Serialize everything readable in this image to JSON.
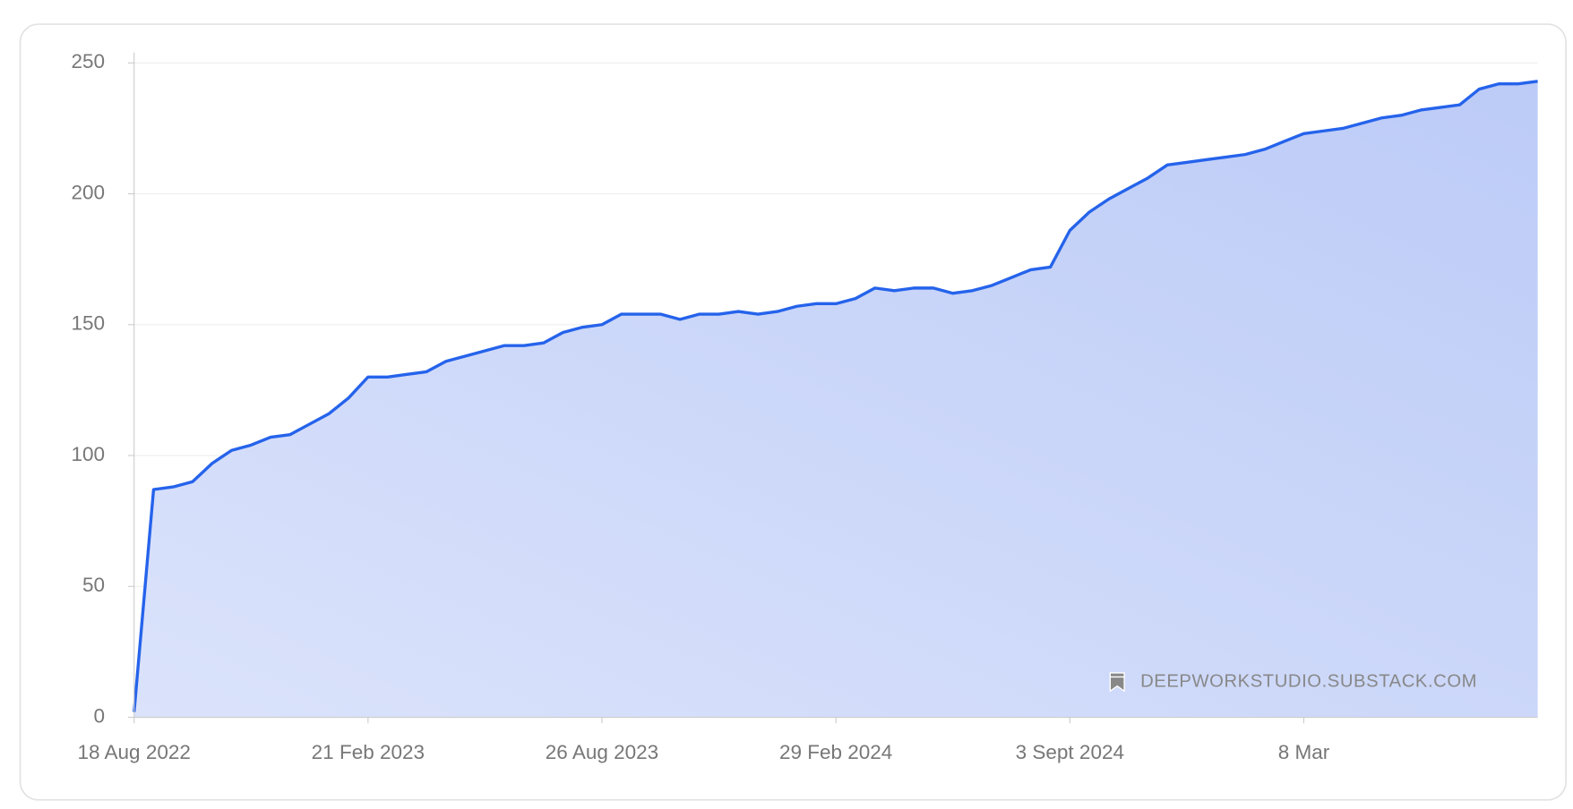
{
  "chart_data": {
    "type": "area",
    "annotation": "DEEPWORKSTUDIO.SUBSTACK.COM",
    "categories": [
      "18 Aug 2022",
      null,
      null,
      null,
      null,
      null,
      null,
      null,
      null,
      null,
      null,
      null,
      "21 Feb 2023",
      null,
      null,
      null,
      null,
      null,
      null,
      null,
      null,
      null,
      null,
      null,
      "26 Aug 2023",
      null,
      null,
      null,
      null,
      null,
      null,
      null,
      null,
      null,
      null,
      null,
      "29 Feb 2024",
      null,
      null,
      null,
      null,
      null,
      null,
      null,
      null,
      null,
      null,
      null,
      "3 Sept 2024",
      null,
      null,
      null,
      null,
      null,
      null,
      null,
      null,
      null,
      null,
      null,
      "8 Mar",
      null,
      null,
      null,
      null,
      null,
      null,
      null,
      null,
      null,
      null,
      null,
      null
    ],
    "values": [
      2,
      87,
      88,
      90,
      97,
      102,
      104,
      107,
      108,
      112,
      116,
      122,
      130,
      130,
      131,
      132,
      136,
      138,
      140,
      142,
      142,
      143,
      147,
      149,
      150,
      154,
      154,
      154,
      152,
      154,
      154,
      155,
      154,
      155,
      157,
      158,
      158,
      160,
      164,
      163,
      164,
      164,
      162,
      163,
      165,
      168,
      171,
      172,
      186,
      193,
      198,
      202,
      206,
      211,
      212,
      213,
      214,
      215,
      217,
      220,
      223,
      224,
      225,
      227,
      229,
      230,
      232,
      233,
      234,
      240,
      242,
      242,
      243
    ],
    "color": "#2563eb",
    "ylim": [
      0,
      254
    ],
    "yticks": [
      0,
      50,
      100,
      150,
      200,
      250
    ],
    "grid": true
  }
}
